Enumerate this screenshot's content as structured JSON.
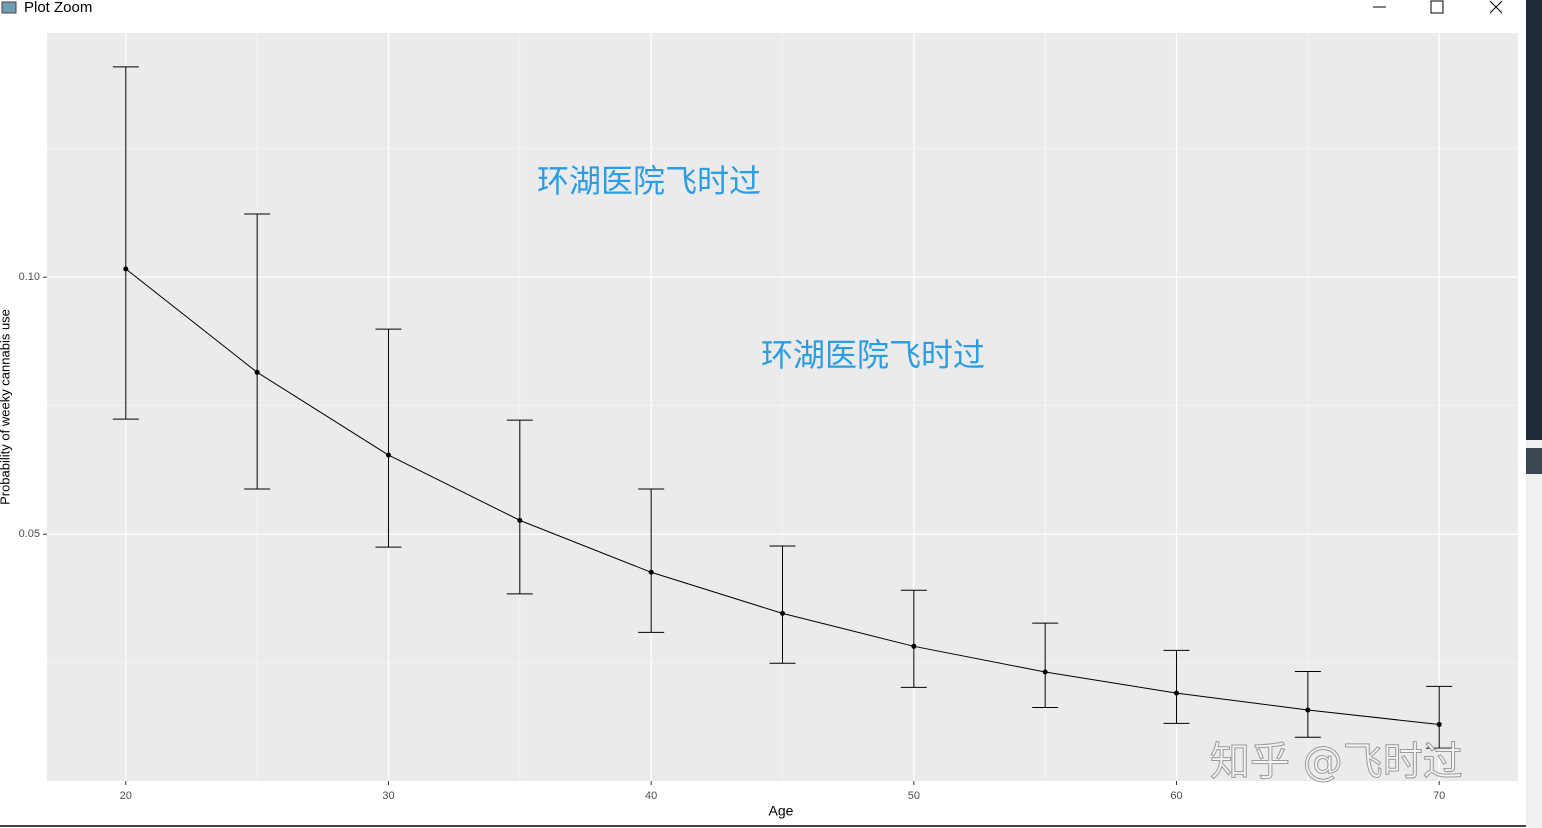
{
  "window": {
    "title": "Plot Zoom"
  },
  "chart_data": {
    "type": "line",
    "xlabel": "Age",
    "ylabel": "Probability of weeky cannabis use",
    "annotations": [
      "环湖医院飞时过",
      "环湖医院飞时过",
      "知乎 @飞时过"
    ],
    "x": [
      20,
      25,
      30,
      35,
      40,
      45,
      50,
      55,
      60,
      65,
      70
    ],
    "series": [
      {
        "color": "#000000",
        "values": [
          0.1016,
          0.0815,
          0.0654,
          0.0527,
          0.0426,
          0.0346,
          0.0282,
          0.0232,
          0.0191,
          0.0158,
          0.013
        ],
        "lower": [
          0.0724,
          0.0588,
          0.0475,
          0.0384,
          0.0309,
          0.0249,
          0.0202,
          0.0163,
          0.0132,
          0.0105,
          0.0084
        ],
        "upper": [
          0.1409,
          0.1123,
          0.0899,
          0.0722,
          0.0588,
          0.0477,
          0.0391,
          0.0327,
          0.0274,
          0.0233,
          0.0204
        ]
      }
    ],
    "xlim": [
      17,
      73
    ],
    "ylim": [
      0.002,
      0.1475
    ],
    "xticks": [
      20,
      30,
      40,
      50,
      60,
      70
    ],
    "yticks": [
      0.05,
      {
        "value": 0.1,
        "label": "0.10"
      }
    ],
    "xminor": [
      25,
      35,
      45,
      55,
      65
    ],
    "yminor": [
      0.025,
      0.075,
      0.125
    ],
    "grid": true
  }
}
